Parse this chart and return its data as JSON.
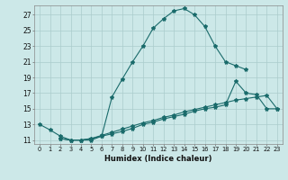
{
  "xlabel": "Humidex (Indice chaleur)",
  "bg_color": "#cce8e8",
  "grid_color": "#aacccc",
  "line_color": "#1a6b6b",
  "ylim": [
    10.5,
    28.2
  ],
  "xlim": [
    -0.5,
    23.5
  ],
  "yticks": [
    11,
    13,
    15,
    17,
    19,
    21,
    23,
    25,
    27
  ],
  "xticks": [
    0,
    1,
    2,
    3,
    4,
    5,
    6,
    7,
    8,
    9,
    10,
    11,
    12,
    13,
    14,
    15,
    16,
    17,
    18,
    19,
    20,
    21,
    22,
    23
  ],
  "line1_x": [
    0,
    1,
    2,
    3,
    4,
    5,
    6,
    7,
    8,
    9,
    10,
    11,
    12,
    13,
    14,
    15,
    16,
    17,
    18,
    19,
    20
  ],
  "line1_y": [
    13.0,
    12.3,
    11.5,
    11.0,
    11.0,
    11.0,
    11.5,
    16.5,
    18.8,
    21.0,
    23.0,
    25.3,
    26.5,
    27.5,
    27.8,
    27.0,
    25.5,
    23.0,
    21.0,
    20.5,
    20.0
  ],
  "line2_x": [
    2,
    3,
    4,
    5,
    6,
    7,
    8,
    9,
    10,
    11,
    12,
    13,
    14,
    15,
    16,
    17,
    18,
    19,
    20,
    21,
    22,
    23
  ],
  "line2_y": [
    11.2,
    11.0,
    11.0,
    11.2,
    11.5,
    11.8,
    12.1,
    12.5,
    13.0,
    13.3,
    13.7,
    14.0,
    14.3,
    14.7,
    15.0,
    15.2,
    15.5,
    18.5,
    17.0,
    16.8,
    15.0,
    15.0
  ],
  "line3_x": [
    2,
    3,
    4,
    5,
    6,
    7,
    8,
    9,
    10,
    11,
    12,
    13,
    14,
    15,
    16,
    17,
    18,
    19,
    20,
    21,
    22,
    23
  ],
  "line3_y": [
    11.2,
    11.0,
    11.0,
    11.2,
    11.6,
    12.0,
    12.4,
    12.8,
    13.2,
    13.5,
    13.9,
    14.2,
    14.6,
    14.9,
    15.2,
    15.5,
    15.8,
    16.1,
    16.3,
    16.5,
    16.7,
    15.0
  ]
}
